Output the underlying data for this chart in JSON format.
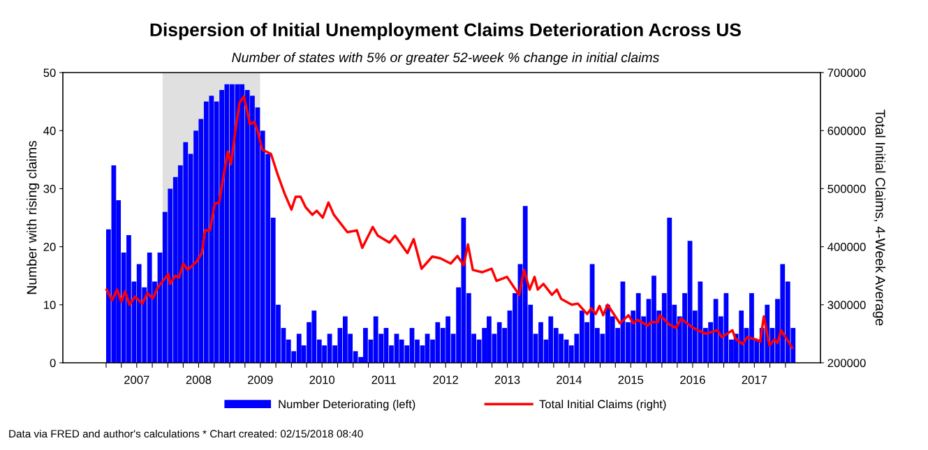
{
  "chart_data": {
    "type": "bar",
    "title": "Dispersion of Initial Unemployment Claims Deterioration Across US",
    "subtitle": "Number of states with 5% or greater 52-week % change in initial claims",
    "ylabel": "Number with rising claims",
    "y2label": "Total Initial Claims, 4-Week Average",
    "annotations": [
      "Data via FRED and author's calculations * Chart created: 02/15/2018 08:40"
    ],
    "legend": "bottom",
    "grid": false,
    "xlim": [
      "2006-04-20",
      "2018-07-27"
    ],
    "xticks": [
      {
        "value": "2007-01-01",
        "label": null
      },
      {
        "value": "2007-04-01",
        "label": null
      },
      {
        "value": "2007-07-01",
        "label": "2007"
      },
      {
        "value": "2007-10-01",
        "label": null
      },
      {
        "value": "2008-01-01",
        "label": null
      },
      {
        "value": "2008-04-01",
        "label": null
      },
      {
        "value": "2008-07-01",
        "label": "2008"
      },
      {
        "value": "2008-10-01",
        "label": null
      },
      {
        "value": "2009-01-01",
        "label": null
      },
      {
        "value": "2009-04-01",
        "label": null
      },
      {
        "value": "2009-07-01",
        "label": "2009"
      },
      {
        "value": "2009-10-01",
        "label": null
      },
      {
        "value": "2010-01-01",
        "label": null
      },
      {
        "value": "2010-04-01",
        "label": null
      },
      {
        "value": "2010-07-01",
        "label": "2010"
      },
      {
        "value": "2010-10-01",
        "label": null
      },
      {
        "value": "2011-01-01",
        "label": null
      },
      {
        "value": "2011-04-01",
        "label": null
      },
      {
        "value": "2011-07-01",
        "label": "2011"
      },
      {
        "value": "2011-10-01",
        "label": null
      },
      {
        "value": "2012-01-01",
        "label": null
      },
      {
        "value": "2012-04-01",
        "label": null
      },
      {
        "value": "2012-07-01",
        "label": "2012"
      },
      {
        "value": "2012-10-01",
        "label": null
      },
      {
        "value": "2013-01-01",
        "label": null
      },
      {
        "value": "2013-04-01",
        "label": null
      },
      {
        "value": "2013-07-01",
        "label": "2013"
      },
      {
        "value": "2013-10-01",
        "label": null
      },
      {
        "value": "2014-01-01",
        "label": null
      },
      {
        "value": "2014-04-01",
        "label": null
      },
      {
        "value": "2014-07-01",
        "label": "2014"
      },
      {
        "value": "2014-10-01",
        "label": null
      },
      {
        "value": "2015-01-01",
        "label": null
      },
      {
        "value": "2015-04-01",
        "label": null
      },
      {
        "value": "2015-07-01",
        "label": "2015"
      },
      {
        "value": "2015-10-01",
        "label": null
      },
      {
        "value": "2016-01-01",
        "label": null
      },
      {
        "value": "2016-04-01",
        "label": null
      },
      {
        "value": "2016-07-01",
        "label": "2016"
      },
      {
        "value": "2016-10-01",
        "label": null
      },
      {
        "value": "2017-01-01",
        "label": null
      },
      {
        "value": "2017-04-01",
        "label": null
      },
      {
        "value": "2017-07-01",
        "label": "2017"
      },
      {
        "value": "2017-10-01",
        "label": null
      },
      {
        "value": "2018-01-01",
        "label": null
      }
    ],
    "ylim": [
      0,
      50
    ],
    "yticks": [
      0,
      10,
      20,
      30,
      40,
      50
    ],
    "y2lim": [
      200000,
      700000
    ],
    "y2ticks": [
      200000,
      300000,
      400000,
      500000,
      600000,
      700000
    ],
    "bands": [
      {
        "axis": "x",
        "from": "2007-12-01",
        "to": "2009-06-30",
        "color": "#e0e0e0"
      }
    ],
    "series": [
      {
        "name": "Number Deteriorating (left)",
        "color": "#0000ff",
        "x": [
          "2007-01",
          "2007-02",
          "2007-03",
          "2007-04",
          "2007-05",
          "2007-06",
          "2007-07",
          "2007-08",
          "2007-09",
          "2007-10",
          "2007-11",
          "2007-12",
          "2008-01",
          "2008-02",
          "2008-03",
          "2008-04",
          "2008-05",
          "2008-06",
          "2008-07",
          "2008-08",
          "2008-09",
          "2008-10",
          "2008-11",
          "2008-12",
          "2009-01",
          "2009-02",
          "2009-03",
          "2009-04",
          "2009-05",
          "2009-06",
          "2009-07",
          "2009-08",
          "2009-09",
          "2009-10",
          "2009-11",
          "2009-12",
          "2010-01",
          "2010-02",
          "2010-03",
          "2010-04",
          "2010-05",
          "2010-06",
          "2010-07",
          "2010-08",
          "2010-09",
          "2010-10",
          "2010-11",
          "2010-12",
          "2011-01",
          "2011-02",
          "2011-03",
          "2011-04",
          "2011-05",
          "2011-06",
          "2011-07",
          "2011-08",
          "2011-09",
          "2011-10",
          "2011-11",
          "2011-12",
          "2012-01",
          "2012-02",
          "2012-03",
          "2012-04",
          "2012-05",
          "2012-06",
          "2012-07",
          "2012-08",
          "2012-09",
          "2012-10",
          "2012-11",
          "2012-12",
          "2013-01",
          "2013-02",
          "2013-03",
          "2013-04",
          "2013-05",
          "2013-06",
          "2013-07",
          "2013-08",
          "2013-09",
          "2013-10",
          "2013-11",
          "2013-12",
          "2014-01",
          "2014-02",
          "2014-03",
          "2014-04",
          "2014-05",
          "2014-06",
          "2014-07",
          "2014-08",
          "2014-09",
          "2014-10",
          "2014-11",
          "2014-12",
          "2015-01",
          "2015-02",
          "2015-03",
          "2015-04",
          "2015-05",
          "2015-06",
          "2015-07",
          "2015-08",
          "2015-09",
          "2015-10",
          "2015-11",
          "2015-12",
          "2016-01",
          "2016-02",
          "2016-03",
          "2016-04",
          "2016-05",
          "2016-06",
          "2016-07",
          "2016-08",
          "2016-09",
          "2016-10",
          "2016-11",
          "2016-12",
          "2017-01",
          "2017-02",
          "2017-03",
          "2017-04",
          "2017-05",
          "2017-06",
          "2017-07",
          "2017-08",
          "2017-09",
          "2017-10",
          "2017-11",
          "2017-12",
          "2018-01",
          "2018-02"
        ],
        "values": [
          23,
          34,
          28,
          19,
          22,
          14,
          17,
          13,
          19,
          14,
          19,
          26,
          30,
          32,
          34,
          38,
          36,
          40,
          42,
          45,
          46,
          45,
          47,
          48,
          48,
          48,
          48,
          47,
          46,
          44,
          40,
          36,
          25,
          10,
          6,
          4,
          2,
          5,
          3,
          7,
          9,
          4,
          3,
          5,
          3,
          6,
          8,
          5,
          2,
          1,
          6,
          4,
          8,
          5,
          6,
          3,
          5,
          4,
          3,
          6,
          4,
          3,
          5,
          4,
          7,
          6,
          8,
          5,
          13,
          25,
          12,
          5,
          4,
          6,
          8,
          5,
          7,
          6,
          9,
          12,
          17,
          27,
          10,
          5,
          7,
          4,
          8,
          6,
          5,
          4,
          3,
          5,
          9,
          7,
          17,
          6,
          5,
          10,
          8,
          6,
          14,
          7,
          9,
          12,
          8,
          11,
          15,
          9,
          12,
          25,
          10,
          8,
          12,
          21,
          9,
          14,
          6,
          7,
          11,
          8,
          12,
          4,
          5,
          9,
          6,
          12,
          4,
          6,
          10,
          6,
          11,
          17,
          14,
          6
        ]
      },
      {
        "name": "Total Initial Claims (right)",
        "type": "line",
        "axis": "y2",
        "color": "#ff0000",
        "x": [
          "2007-01-04",
          "2007-02-05",
          "2007-03-07",
          "2007-04-01",
          "2007-04-23",
          "2007-05-19",
          "2007-06-21",
          "2007-08-03",
          "2007-09-02",
          "2007-10-04",
          "2007-11-03",
          "2008-01-04",
          "2008-01-15",
          "2008-02-14",
          "2008-03-07",
          "2008-04-01",
          "2008-04-27",
          "2008-06-18",
          "2008-07-20",
          "2008-08-08",
          "2008-09-06",
          "2008-10-04",
          "2008-10-30",
          "2008-12-20",
          "2009-01-08",
          "2009-02-06",
          "2009-02-28",
          "2009-03-26",
          "2009-05-01",
          "2009-05-27",
          "2009-06-14",
          "2009-07-13",
          "2009-08-11",
          "2009-09-02",
          "2009-10-12",
          "2009-11-21",
          "2010-01-01",
          "2010-01-26",
          "2010-02-24",
          "2010-03-26",
          "2010-05-05",
          "2010-05-31",
          "2010-07-05",
          "2010-08-08",
          "2010-09-09",
          "2010-11-28",
          "2011-01-23",
          "2011-02-24",
          "2011-04-27",
          "2011-05-27",
          "2011-08-04",
          "2011-09-06",
          "2011-11-18",
          "2011-12-25",
          "2012-02-10",
          "2012-04-13",
          "2012-05-31",
          "2012-07-31",
          "2012-09-09",
          "2012-10-16",
          "2012-11-10",
          "2012-12-09",
          "2013-02-03",
          "2013-03-30",
          "2013-04-28",
          "2013-06-29",
          "2013-09-09",
          "2013-10-08",
          "2013-11-10",
          "2013-12-09",
          "2013-12-28",
          "2014-01-30",
          "2014-03-22",
          "2014-04-20",
          "2014-05-16",
          "2014-07-17",
          "2014-08-22",
          "2014-10-16",
          "2014-11-10",
          "2014-12-06",
          "2014-12-28",
          "2015-01-19",
          "2015-02-14",
          "2015-04-28",
          "2015-06-18",
          "2015-07-17",
          "2015-08-11",
          "2015-10-09",
          "2015-10-28",
          "2015-12-09",
          "2015-12-20",
          "2016-02-14",
          "2016-03-25",
          "2016-04-23",
          "2016-07-05",
          "2016-09-16",
          "2016-11-25",
          "2016-12-20",
          "2017-02-21",
          "2017-03-11",
          "2017-04-23",
          "2017-05-19",
          "2017-07-13",
          "2017-08-04",
          "2017-08-26",
          "2017-09-28",
          "2017-10-28",
          "2017-11-15",
          "2017-12-06",
          "2018-02-10"
        ],
        "values": [
          326000,
          308000,
          326000,
          305000,
          323000,
          300000,
          314000,
          302000,
          320000,
          311000,
          330000,
          353000,
          336000,
          350000,
          347000,
          371000,
          360000,
          374000,
          389000,
          428000,
          428000,
          474000,
          476000,
          564000,
          542000,
          605000,
          648000,
          659000,
          611000,
          615000,
          600000,
          567000,
          563000,
          560000,
          524000,
          492000,
          464000,
          486000,
          486000,
          468000,
          455000,
          462000,
          450000,
          476000,
          455000,
          425000,
          428000,
          398000,
          434000,
          419000,
          407000,
          419000,
          389000,
          413000,
          362000,
          383000,
          380000,
          371000,
          384000,
          368000,
          404000,
          360000,
          356000,
          362000,
          341000,
          348000,
          317000,
          360000,
          326000,
          348000,
          326000,
          336000,
          317000,
          326000,
          310000,
          300000,
          302000,
          284000,
          294000,
          284000,
          298000,
          282000,
          300000,
          268000,
          282000,
          268000,
          274000,
          264000,
          270000,
          270000,
          282000,
          266000,
          260000,
          276000,
          260000,
          250000,
          256000,
          244000,
          256000,
          242000,
          232000,
          244000,
          240000,
          236000,
          280000,
          230000,
          240000,
          234000,
          256000,
          226000
        ]
      }
    ]
  }
}
